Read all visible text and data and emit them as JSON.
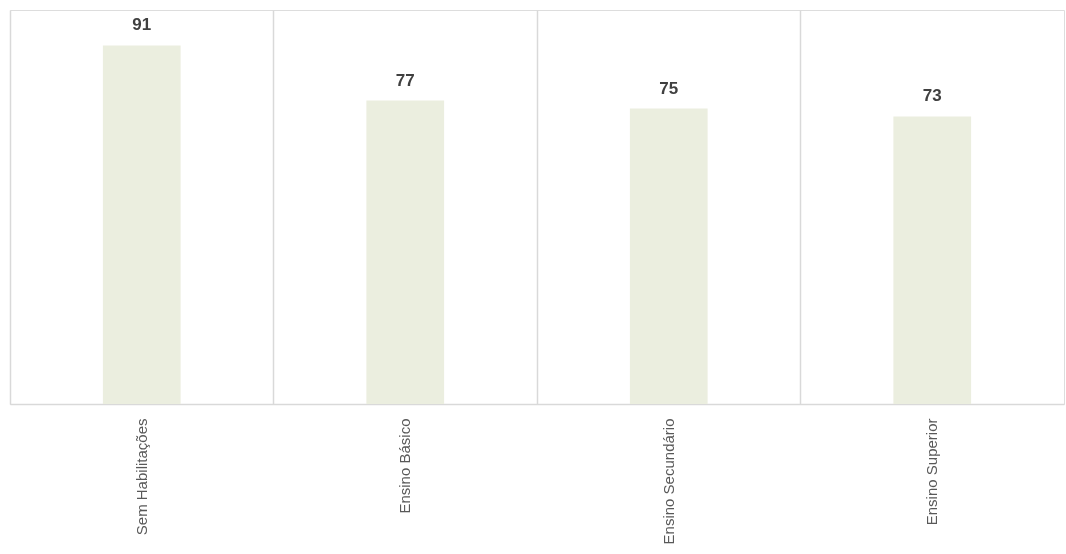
{
  "chart_data": {
    "type": "bar",
    "categories": [
      "Sem Habilitações",
      "Ensino Básico",
      "Ensino Secundário",
      "Ensino Superior"
    ],
    "values": [
      91,
      77,
      75,
      73
    ],
    "color": "#ebeedf",
    "ylim": [
      0,
      100
    ],
    "data_labels": true,
    "grid": "x"
  }
}
